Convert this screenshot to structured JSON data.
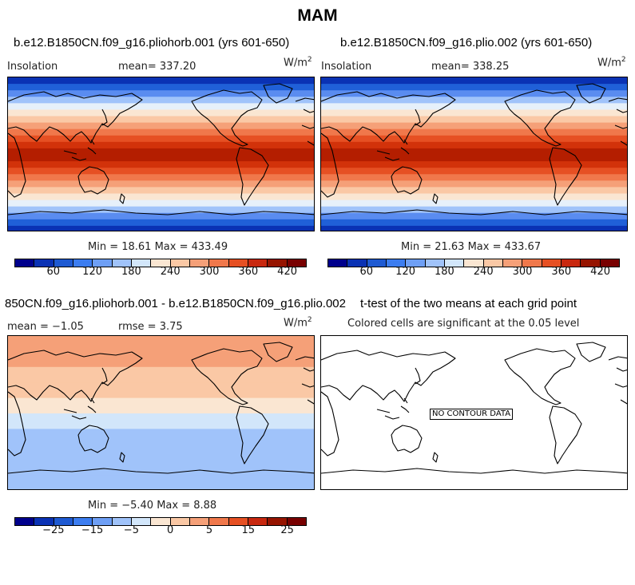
{
  "title": "MAM",
  "panels": {
    "p1": {
      "case": "b.e12.B1850CN.f09_g16.pliohorb.001 (yrs 601-650)",
      "variable": "Insolation",
      "mean": "mean= 337.20",
      "units_base": "W/m",
      "units_sup": "2",
      "stats": "Min =  18.61 Max = 433.49",
      "ticks": [
        "60",
        "120",
        "180",
        "240",
        "300",
        "360",
        "420"
      ]
    },
    "p2": {
      "case": "b.e12.B1850CN.f09_g16.plio.002 (yrs 601-650)",
      "variable": "Insolation",
      "mean": "mean= 338.25",
      "units_base": "W/m",
      "units_sup": "2",
      "stats": "Min =  21.63 Max = 433.67",
      "ticks": [
        "60",
        "120",
        "180",
        "240",
        "300",
        "360",
        "420"
      ]
    },
    "p3": {
      "case": "850CN.f09_g16.pliohorb.001 - b.e12.B1850CN.f09_g16.plio.002",
      "mean": "mean =  −1.05",
      "rmse": "rmse =    3.75",
      "units_base": "W/m",
      "units_sup": "2",
      "stats": "Min =  −5.40 Max =   8.88",
      "ticks": [
        "−25",
        "−15",
        "−5",
        "0",
        "5",
        "15",
        "25"
      ]
    },
    "p4": {
      "case": "t-test of the two means at each grid point",
      "subtitle": "Colored cells are significant at the 0.05 level",
      "nodata": "NO CONTOUR DATA"
    }
  },
  "colorbar_colors": [
    "#00008c",
    "#0a32b4",
    "#1e5ad2",
    "#3c7df0",
    "#6e9ff5",
    "#a0c3fa",
    "#d2e6fa",
    "#fae6d2",
    "#fac8a5",
    "#f5a078",
    "#f0784b",
    "#e65023",
    "#c8280f",
    "#961400",
    "#780000"
  ],
  "insolation_bands": [
    "#0a32b4",
    "#2060d8",
    "#5a8cf0",
    "#a0c3fa",
    "#e6f0fa",
    "#fae6d2",
    "#fac8a5",
    "#f5a078",
    "#f0784b",
    "#e65023",
    "#d2320a",
    "#b41e00",
    "#b41e00",
    "#d2320a",
    "#e65023",
    "#f0784b",
    "#f5a078",
    "#fac8a5",
    "#fae6d2",
    "#e6f0fa",
    "#a0c3fa",
    "#5a8cf0",
    "#2060d8",
    "#0a32b4"
  ],
  "diff_bands": [
    "#f5a078",
    "#f5a078",
    "#fac8a5",
    "#fac8a5",
    "#fae6d2",
    "#d2e6fa",
    "#a0c3fa",
    "#a0c3fa",
    "#a0c3fa",
    "#a0c3fa"
  ]
}
